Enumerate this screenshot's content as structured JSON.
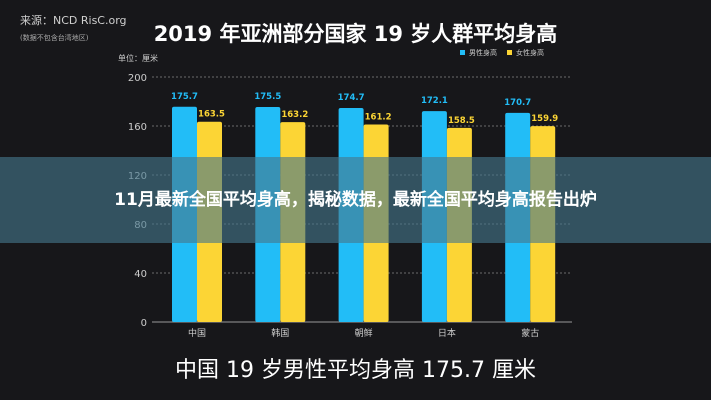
{
  "source": "来源：NCD RisC.org",
  "source_note": "(数据不包含台湾地区)",
  "banner": "11月最新全国平均身高，揭秘数据，最新全国平均身高报告出炉",
  "caption": "中国 19 岁男性平均身高 175.7 厘米",
  "chart_data": {
    "type": "bar",
    "title": "2019 年亚洲部分国家 19 岁人群平均身高",
    "ylabel": "单位：厘米",
    "categories": [
      "中国",
      "韩国",
      "朝鲜",
      "日本",
      "蒙古"
    ],
    "series": [
      {
        "name": "男性身高",
        "color": "#22bdf7",
        "values": [
          175.7,
          175.5,
          174.7,
          172.1,
          170.7
        ]
      },
      {
        "name": "女性身高",
        "color": "#fcd535",
        "values": [
          163.5,
          163.2,
          161.2,
          158.5,
          159.9
        ]
      }
    ],
    "ylim": [
      0,
      200
    ],
    "yticks": [
      0,
      40,
      80,
      120,
      160,
      200
    ],
    "grid": true,
    "legend": "top-right"
  }
}
